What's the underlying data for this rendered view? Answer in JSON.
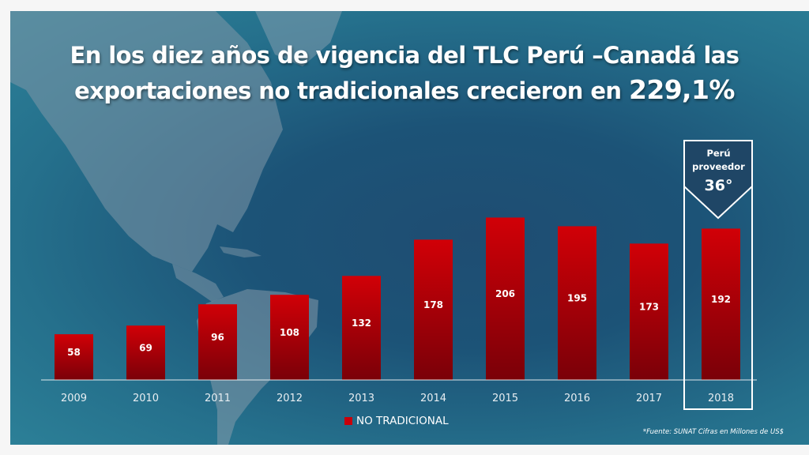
{
  "title": {
    "main": "En los diez años de vigencia del TLC Perú –Canadá  las exportaciones no tradicionales  crecieron en ",
    "percent": "229,1%"
  },
  "badge": {
    "line1": "Perú",
    "line2": "proveedor",
    "rank": "36°"
  },
  "legend": {
    "label": "NO TRADICIONAL",
    "color": "#c8000a"
  },
  "source": "*Fuente: SUNAT Cifras en Millones de US$",
  "chart_data": {
    "type": "bar",
    "categories": [
      "2009",
      "2010",
      "2011",
      "2012",
      "2013",
      "2014",
      "2015",
      "2016",
      "2017",
      "2018"
    ],
    "series": [
      {
        "name": "NO TRADICIONAL",
        "values": [
          58,
          69,
          96,
          108,
          132,
          178,
          206,
          195,
          173,
          192
        ]
      }
    ],
    "value_labels": [
      "58",
      "69",
      "96",
      "108",
      "132",
      "178",
      "206",
      "195",
      "173",
      "192"
    ],
    "ylim": [
      0,
      220
    ],
    "grid": false,
    "legend_position": "bottom",
    "highlighted_category": "2018",
    "colors": {
      "bar_top": "#d10007",
      "bar_bottom": "#7a0008"
    }
  }
}
